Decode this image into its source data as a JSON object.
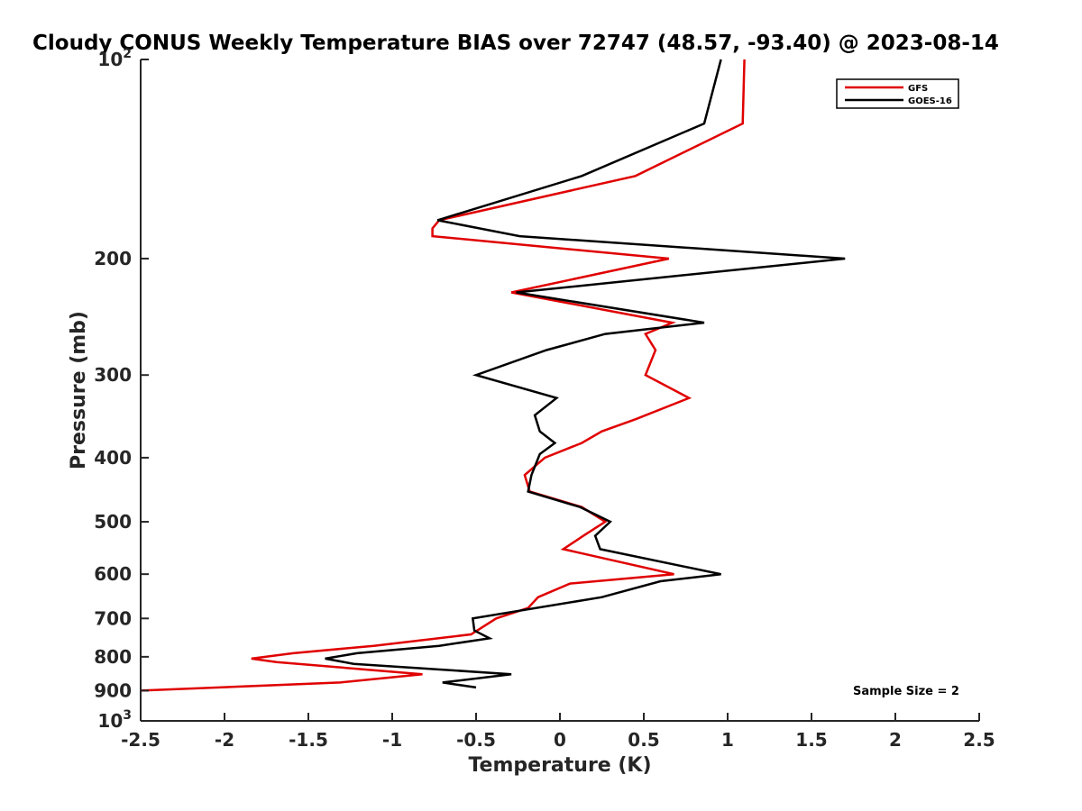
{
  "chart_data": {
    "type": "line",
    "title": "Cloudy CONUS Weekly Temperature BIAS over 72747 (48.57, -93.40) @ 2023-08-14",
    "xlabel": "Temperature (K)",
    "ylabel": "Pressure (mb)",
    "xlim": [
      -2.5,
      2.5
    ],
    "ylim": [
      100,
      1000
    ],
    "y_scale": "log",
    "y_reversed": true,
    "grid": false,
    "legend_position": "top-right",
    "x_ticks": [
      "-2.5",
      "-2",
      "-1.5",
      "-1",
      "-0.5",
      "0",
      "0.5",
      "1",
      "1.5",
      "2",
      "2.5"
    ],
    "y_ticks": [
      {
        "value": 100,
        "base": "10",
        "exp": "2"
      },
      {
        "value": 200,
        "label": "200"
      },
      {
        "value": 300,
        "label": "300"
      },
      {
        "value": 400,
        "label": "400"
      },
      {
        "value": 500,
        "label": "500"
      },
      {
        "value": 600,
        "label": "600"
      },
      {
        "value": 700,
        "label": "700"
      },
      {
        "value": 800,
        "label": "800"
      },
      {
        "value": 900,
        "label": "900"
      },
      {
        "value": 1000,
        "base": "10",
        "exp": "3"
      }
    ],
    "series": [
      {
        "name": "GFS",
        "color": "#e00000",
        "points": [
          [
            1.1,
            100
          ],
          [
            1.09,
            125
          ],
          [
            0.45,
            150
          ],
          [
            -0.72,
            175
          ],
          [
            -0.76,
            180
          ],
          [
            -0.76,
            185
          ],
          [
            0.65,
            200
          ],
          [
            -0.29,
            225
          ],
          [
            0.67,
            250
          ],
          [
            0.51,
            260
          ],
          [
            0.57,
            275
          ],
          [
            0.51,
            300
          ],
          [
            0.77,
            325
          ],
          [
            0.45,
            350
          ],
          [
            0.25,
            365
          ],
          [
            0.13,
            380
          ],
          [
            -0.09,
            400
          ],
          [
            -0.21,
            425
          ],
          [
            -0.18,
            450
          ],
          [
            0.13,
            475
          ],
          [
            0.27,
            500
          ],
          [
            0.14,
            525
          ],
          [
            0.02,
            550
          ],
          [
            0.68,
            600
          ],
          [
            0.06,
            620
          ],
          [
            -0.13,
            650
          ],
          [
            -0.19,
            675
          ],
          [
            -0.38,
            700
          ],
          [
            -0.53,
            740
          ],
          [
            -1.11,
            770
          ],
          [
            -1.59,
            790
          ],
          [
            -1.84,
            805
          ],
          [
            -1.69,
            815
          ],
          [
            -0.82,
            850
          ],
          [
            -1.31,
            875
          ],
          [
            -2.5,
            900
          ]
        ]
      },
      {
        "name": "GOES-16",
        "color": "#000000",
        "points": [
          [
            0.96,
            100
          ],
          [
            0.86,
            125
          ],
          [
            0.13,
            150
          ],
          [
            -0.73,
            175
          ],
          [
            -0.24,
            185
          ],
          [
            1.7,
            200
          ],
          [
            -0.26,
            225
          ],
          [
            0.86,
            250
          ],
          [
            0.27,
            260
          ],
          [
            -0.08,
            275
          ],
          [
            -0.5,
            300
          ],
          [
            -0.02,
            325
          ],
          [
            -0.15,
            345
          ],
          [
            -0.12,
            365
          ],
          [
            -0.03,
            380
          ],
          [
            -0.12,
            395
          ],
          [
            -0.17,
            425
          ],
          [
            -0.19,
            450
          ],
          [
            0.12,
            475
          ],
          [
            0.3,
            500
          ],
          [
            0.21,
            525
          ],
          [
            0.24,
            550
          ],
          [
            0.96,
            600
          ],
          [
            0.6,
            615
          ],
          [
            0.25,
            650
          ],
          [
            -0.52,
            700
          ],
          [
            -0.51,
            730
          ],
          [
            -0.42,
            750
          ],
          [
            -0.72,
            770
          ],
          [
            -1.21,
            790
          ],
          [
            -1.4,
            805
          ],
          [
            -1.23,
            820
          ],
          [
            -0.29,
            850
          ],
          [
            -0.7,
            875
          ],
          [
            -0.5,
            890
          ]
        ]
      }
    ],
    "annotations": [
      "Sample Size = 2"
    ]
  }
}
